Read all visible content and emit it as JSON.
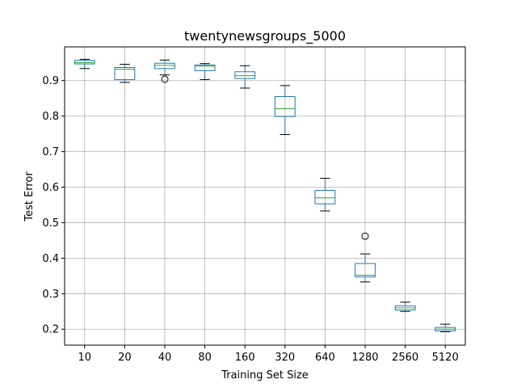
{
  "chart_data": {
    "type": "box",
    "title": "twentynewsgroups_5000",
    "xlabel": "Training Set Size",
    "ylabel": "Test Error",
    "ylim": [
      0.155,
      0.995
    ],
    "yticks": [
      0.2,
      0.3,
      0.4,
      0.5,
      0.6,
      0.7,
      0.8,
      0.9
    ],
    "ytick_labels": [
      "0.2",
      "0.3",
      "0.4",
      "0.5",
      "0.6",
      "0.7",
      "0.8",
      "0.9"
    ],
    "grid": true,
    "colors": {
      "box": "#1f77b4",
      "median": "#2ca02c",
      "whisker_cap": "#000000",
      "grid": "#b0b0b0"
    },
    "categories": [
      "10",
      "20",
      "40",
      "80",
      "160",
      "320",
      "640",
      "1280",
      "2560",
      "5120"
    ],
    "boxes": [
      {
        "label": "10",
        "whislo": 0.934,
        "q1": 0.947,
        "med": 0.951,
        "q3": 0.957,
        "whishi": 0.96,
        "fliers": []
      },
      {
        "label": "20",
        "whislo": 0.895,
        "q1": 0.903,
        "med": 0.932,
        "q3": 0.937,
        "whishi": 0.946,
        "fliers": []
      },
      {
        "label": "40",
        "whislo": 0.916,
        "q1": 0.934,
        "med": 0.943,
        "q3": 0.949,
        "whishi": 0.958,
        "fliers": [
          0.904
        ]
      },
      {
        "label": "80",
        "whislo": 0.903,
        "q1": 0.928,
        "med": 0.941,
        "q3": 0.944,
        "whishi": 0.948,
        "fliers": []
      },
      {
        "label": "160",
        "whislo": 0.879,
        "q1": 0.906,
        "med": 0.914,
        "q3": 0.925,
        "whishi": 0.942,
        "fliers": []
      },
      {
        "label": "320",
        "whislo": 0.748,
        "q1": 0.799,
        "med": 0.821,
        "q3": 0.855,
        "whishi": 0.886,
        "fliers": []
      },
      {
        "label": "640",
        "whislo": 0.533,
        "q1": 0.553,
        "med": 0.57,
        "q3": 0.591,
        "whishi": 0.625,
        "fliers": []
      },
      {
        "label": "1280",
        "whislo": 0.333,
        "q1": 0.347,
        "med": 0.352,
        "q3": 0.385,
        "whishi": 0.412,
        "fliers": [
          0.462
        ]
      },
      {
        "label": "2560",
        "whislo": 0.25,
        "q1": 0.254,
        "med": 0.26,
        "q3": 0.266,
        "whishi": 0.276,
        "fliers": []
      },
      {
        "label": "5120",
        "whislo": 0.193,
        "q1": 0.195,
        "med": 0.2,
        "q3": 0.205,
        "whishi": 0.214,
        "fliers": []
      }
    ]
  }
}
